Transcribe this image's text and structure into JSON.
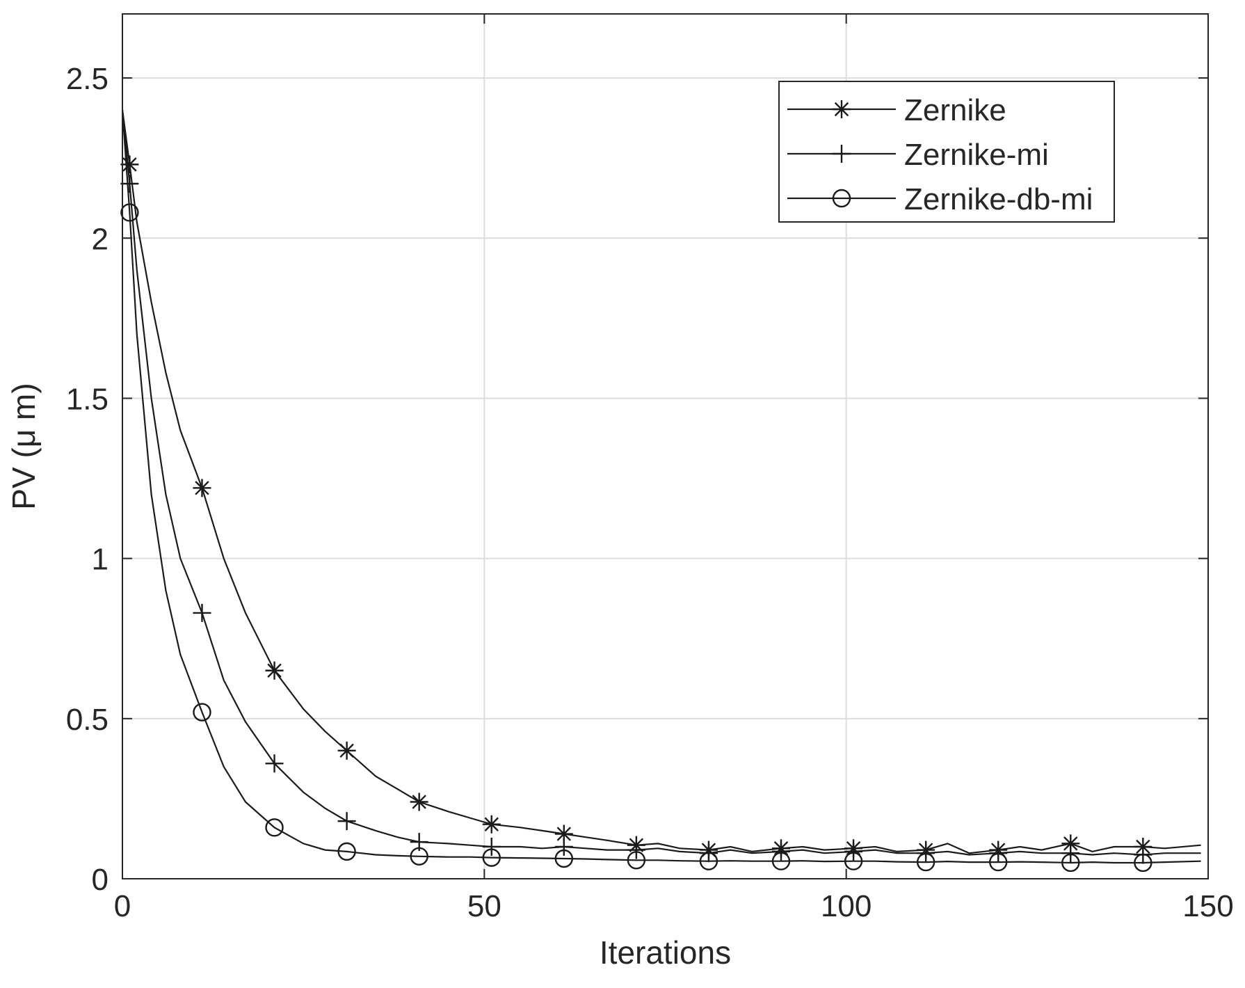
{
  "chart_data": {
    "type": "line",
    "title": "",
    "xlabel": "Iterations",
    "ylabel": "PV (μ m)",
    "xlim": [
      0,
      150
    ],
    "ylim": [
      0,
      2.7
    ],
    "xticks": [
      0,
      50,
      100,
      150
    ],
    "yticks": [
      0,
      0.5,
      1,
      1.5,
      2,
      2.5
    ],
    "xtick_labels": [
      "0",
      "50",
      "100",
      "150"
    ],
    "ytick_labels": [
      "0",
      "0.5",
      "1",
      "1.5",
      "2",
      "2.5"
    ],
    "grid": true,
    "legend_position": "top-right",
    "line_color": "#1a1a1a",
    "series": [
      {
        "name": "Zernike",
        "marker": "asterisk",
        "x": [
          0,
          1,
          2,
          4,
          6,
          8,
          11,
          14,
          17,
          21,
          25,
          28,
          31,
          35,
          38,
          41,
          45,
          48,
          51,
          55,
          58,
          61,
          64,
          67,
          71,
          74,
          77,
          81,
          84,
          87,
          91,
          94,
          97,
          101,
          104,
          107,
          111,
          114,
          117,
          121,
          124,
          127,
          131,
          134,
          137,
          141,
          144,
          149
        ],
        "y": [
          2.4,
          2.23,
          2.05,
          1.8,
          1.58,
          1.4,
          1.22,
          1.0,
          0.83,
          0.65,
          0.53,
          0.46,
          0.4,
          0.32,
          0.28,
          0.24,
          0.21,
          0.19,
          0.17,
          0.16,
          0.15,
          0.14,
          0.13,
          0.12,
          0.105,
          0.11,
          0.095,
          0.09,
          0.1,
          0.085,
          0.095,
          0.1,
          0.09,
          0.095,
          0.1,
          0.085,
          0.09,
          0.11,
          0.08,
          0.09,
          0.1,
          0.09,
          0.11,
          0.085,
          0.1,
          0.1,
          0.095,
          0.105
        ],
        "marker_x": [
          1,
          11,
          21,
          31,
          41,
          51,
          61,
          71,
          81,
          91,
          101,
          111,
          121,
          131,
          141
        ]
      },
      {
        "name": "Zernike-mi",
        "marker": "plus",
        "x": [
          0,
          1,
          2,
          4,
          6,
          8,
          11,
          14,
          17,
          21,
          25,
          28,
          31,
          35,
          38,
          41,
          45,
          48,
          51,
          55,
          58,
          61,
          64,
          67,
          71,
          74,
          77,
          81,
          84,
          87,
          91,
          94,
          97,
          101,
          104,
          107,
          111,
          114,
          117,
          121,
          124,
          127,
          131,
          134,
          137,
          141,
          144,
          149
        ],
        "y": [
          2.4,
          2.17,
          1.9,
          1.5,
          1.2,
          1.0,
          0.83,
          0.62,
          0.49,
          0.36,
          0.27,
          0.22,
          0.18,
          0.15,
          0.13,
          0.115,
          0.11,
          0.105,
          0.1,
          0.1,
          0.095,
          0.1,
          0.095,
          0.09,
          0.09,
          0.095,
          0.085,
          0.08,
          0.09,
          0.08,
          0.085,
          0.09,
          0.08,
          0.085,
          0.09,
          0.08,
          0.08,
          0.085,
          0.075,
          0.08,
          0.085,
          0.08,
          0.08,
          0.075,
          0.08,
          0.075,
          0.08,
          0.08
        ],
        "marker_x": [
          1,
          11,
          21,
          31,
          41,
          51,
          61,
          71,
          81,
          91,
          101,
          111,
          121,
          131,
          141
        ]
      },
      {
        "name": "Zernike-db-mi",
        "marker": "circle",
        "x": [
          0,
          1,
          2,
          4,
          6,
          8,
          11,
          14,
          17,
          21,
          25,
          28,
          31,
          35,
          38,
          41,
          45,
          48,
          51,
          55,
          58,
          61,
          64,
          67,
          71,
          74,
          77,
          81,
          84,
          87,
          91,
          94,
          97,
          101,
          104,
          107,
          111,
          114,
          117,
          121,
          124,
          127,
          131,
          134,
          137,
          141,
          144,
          149
        ],
        "y": [
          2.4,
          2.08,
          1.7,
          1.2,
          0.9,
          0.7,
          0.52,
          0.35,
          0.24,
          0.16,
          0.11,
          0.09,
          0.085,
          0.075,
          0.072,
          0.07,
          0.068,
          0.068,
          0.066,
          0.065,
          0.064,
          0.063,
          0.062,
          0.06,
          0.058,
          0.058,
          0.056,
          0.055,
          0.056,
          0.055,
          0.055,
          0.056,
          0.054,
          0.055,
          0.055,
          0.053,
          0.052,
          0.054,
          0.052,
          0.052,
          0.053,
          0.052,
          0.05,
          0.052,
          0.05,
          0.05,
          0.052,
          0.055
        ],
        "marker_x": [
          1,
          11,
          21,
          31,
          41,
          51,
          61,
          71,
          81,
          91,
          101,
          111,
          121,
          131,
          141
        ]
      }
    ]
  }
}
